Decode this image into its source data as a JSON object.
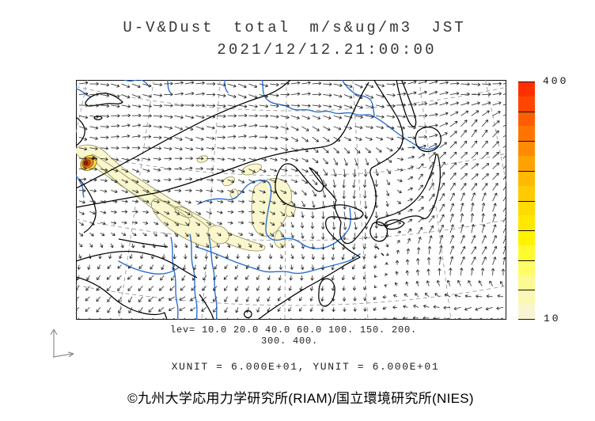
{
  "header": {
    "title": "U-V&Dust total m/s&ug/m3 JST",
    "datetime": "2021/12/12.21:00:00"
  },
  "colorbar": {
    "max_label": "400",
    "min_label": "10",
    "segments": [
      "#FF3000",
      "#FF4600",
      "#FF5D00",
      "#FF7400",
      "#FF8B00",
      "#FFA200",
      "#FFB900",
      "#FFCB00",
      "#FFDB00",
      "#FFE800",
      "#FFF300",
      "#FFFA30",
      "#FFFC68",
      "#FCFA90",
      "#FAF8B4",
      "#F8F6D2"
    ]
  },
  "legend": {
    "lev_line1": "lev= 10.0 20.0 40.0 60.0 100. 150. 200.",
    "lev_line2": "300. 400.",
    "levels": [
      10,
      20,
      40,
      60,
      100,
      150,
      200,
      300,
      400
    ]
  },
  "units_line": "XUNIT = 6.000E+01, YUNIT = 6.000E+01",
  "credit": "©九州大学応用力学研究所(RIAM)/国立環境研究所(NIES)",
  "map": {
    "colors": {
      "coast": "#000000",
      "border_line": "#1a1a1a",
      "river": "#2C6FD1",
      "graticule": "#9b9b9b",
      "arrow": "#1f1f1f",
      "dust_fill": "#FAF7CF",
      "dust_outline": "#8F8F5A",
      "hotspot_yellow": "#FFE24A",
      "hotspot_orange": "#FF8C1A",
      "hotspot_red": "#ED4400",
      "hotspot_core": "#7B3000"
    }
  }
}
